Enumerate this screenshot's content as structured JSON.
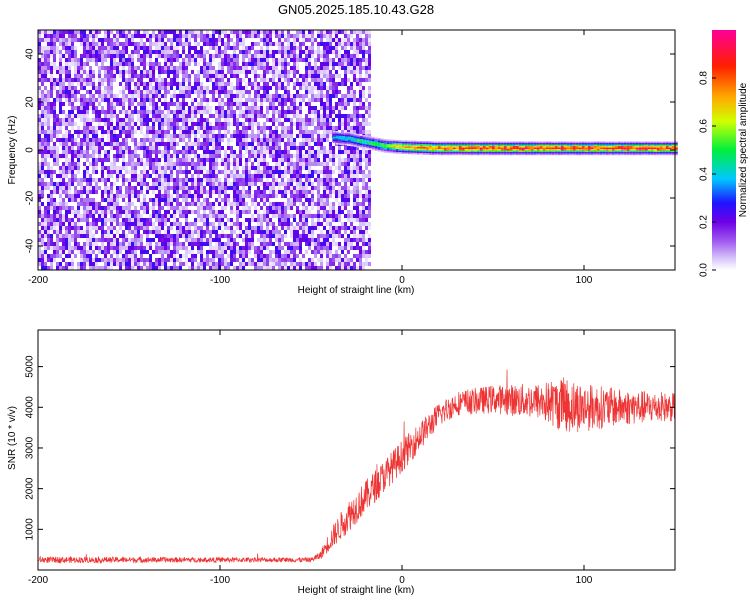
{
  "title": "GN05.2025.185.10.43.G28",
  "chart_data": [
    {
      "type": "heatmap",
      "xlabel": "Height of straight line (km)",
      "ylabel": "Frequency (Hz)",
      "xlim": [
        -200,
        150
      ],
      "ylim": [
        -50,
        50
      ],
      "xticks": [
        -200,
        -100,
        0,
        100
      ],
      "yticks": [
        -40,
        -20,
        0,
        20,
        40
      ],
      "noise_region": {
        "x_range": [
          -200,
          -18
        ],
        "y_range": [
          -50,
          50
        ],
        "level": 0.15
      },
      "signal_track": [
        {
          "x": -38,
          "freq": 5.5,
          "amp": 0.45
        },
        {
          "x": -30,
          "freq": 5.0,
          "amp": 0.5
        },
        {
          "x": -20,
          "freq": 3.5,
          "amp": 0.55
        },
        {
          "x": -10,
          "freq": 2.0,
          "amp": 0.65
        },
        {
          "x": 0,
          "freq": 1.5,
          "amp": 0.8
        },
        {
          "x": 20,
          "freq": 1.0,
          "amp": 0.9
        },
        {
          "x": 50,
          "freq": 1.0,
          "amp": 0.95
        },
        {
          "x": 100,
          "freq": 1.0,
          "amp": 0.95
        },
        {
          "x": 150,
          "freq": 1.0,
          "amp": 0.95
        }
      ],
      "colorbar": {
        "label": "Normalized spectral amplitude",
        "range": [
          0,
          1
        ],
        "ticks": [
          0.0,
          0.2,
          0.4,
          0.6,
          0.8
        ]
      }
    },
    {
      "type": "line",
      "xlabel": "Height of straight line (km)",
      "ylabel": "SNR (10 * v/v)",
      "xlim": [
        -200,
        150
      ],
      "ylim": [
        0,
        5900
      ],
      "xticks": [
        -200,
        -100,
        0,
        100
      ],
      "yticks": [
        1000,
        2000,
        3000,
        4000,
        5000
      ],
      "color": "#ee3333",
      "series_envelope": [
        {
          "x": -200,
          "y": 250,
          "spread": 80
        },
        {
          "x": -100,
          "y": 250,
          "spread": 60
        },
        {
          "x": -50,
          "y": 250,
          "spread": 60
        },
        {
          "x": -45,
          "y": 350,
          "spread": 100
        },
        {
          "x": -40,
          "y": 700,
          "spread": 250
        },
        {
          "x": -30,
          "y": 1300,
          "spread": 400
        },
        {
          "x": -20,
          "y": 1800,
          "spread": 400
        },
        {
          "x": -10,
          "y": 2300,
          "spread": 400
        },
        {
          "x": 0,
          "y": 2800,
          "spread": 400
        },
        {
          "x": 10,
          "y": 3300,
          "spread": 350
        },
        {
          "x": 20,
          "y": 3800,
          "spread": 300
        },
        {
          "x": 30,
          "y": 4100,
          "spread": 300
        },
        {
          "x": 50,
          "y": 4200,
          "spread": 350
        },
        {
          "x": 75,
          "y": 4150,
          "spread": 450
        },
        {
          "x": 90,
          "y": 4050,
          "spread": 700
        },
        {
          "x": 100,
          "y": 4000,
          "spread": 600
        },
        {
          "x": 120,
          "y": 4000,
          "spread": 450
        },
        {
          "x": 150,
          "y": 4000,
          "spread": 350
        }
      ]
    }
  ]
}
